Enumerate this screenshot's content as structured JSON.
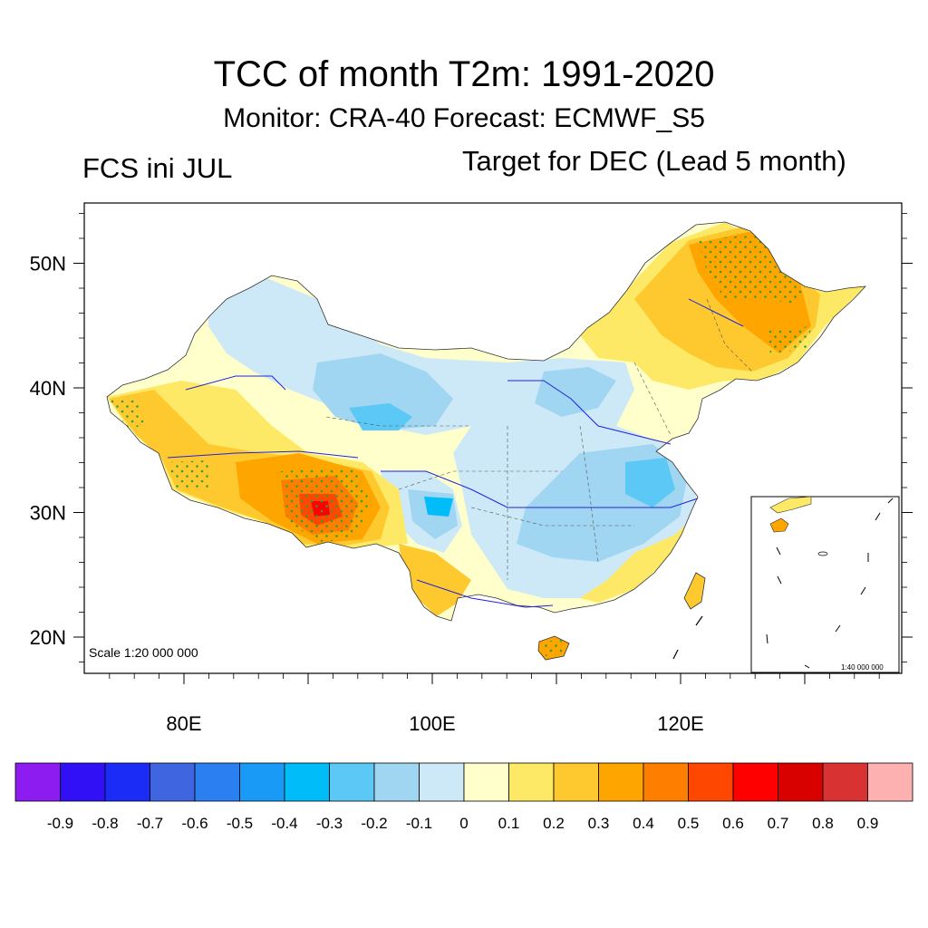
{
  "header": {
    "title": "TCC of month T2m: 1991-2020",
    "subtitle": "Monitor: CRA-40   Forecast: ECMWF_S5",
    "left_label": "FCS ini JUL",
    "right_label": "Target for DEC (Lead 5 month)"
  },
  "map": {
    "scale_text": "Scale 1:20 000 000",
    "inset_scale_text": "1:40 000 000",
    "lat_ticks": [
      {
        "value": 50,
        "label": "50N"
      },
      {
        "value": 40,
        "label": "40N"
      },
      {
        "value": 30,
        "label": "30N"
      },
      {
        "value": 20,
        "label": "20N"
      }
    ],
    "lon_ticks": [
      {
        "value": 80,
        "label": "80E"
      },
      {
        "value": 100,
        "label": "100E"
      },
      {
        "value": 120,
        "label": "120E"
      }
    ],
    "lon_range": [
      72,
      138
    ],
    "lat_range": [
      17,
      55
    ]
  },
  "colorbar": {
    "colors": [
      "#8c1cf0",
      "#3210f5",
      "#1a2cf5",
      "#3f66e0",
      "#2b7ff0",
      "#1a9af7",
      "#00bcf8",
      "#5cc8f5",
      "#a0d6f2",
      "#cde9f7",
      "#ffffcc",
      "#fde966",
      "#fec92f",
      "#fea500",
      "#fe7f00",
      "#fe4700",
      "#fe0000",
      "#d90000",
      "#d83232",
      "#feb1b1"
    ],
    "labels": [
      "-0.9",
      "-0.8",
      "-0.7",
      "-0.6",
      "-0.5",
      "-0.4",
      "-0.3",
      "-0.2",
      "-0.1",
      "0",
      "0.1",
      "0.2",
      "0.3",
      "0.4",
      "0.5",
      "0.6",
      "0.7",
      "0.8",
      "0.9"
    ]
  }
}
